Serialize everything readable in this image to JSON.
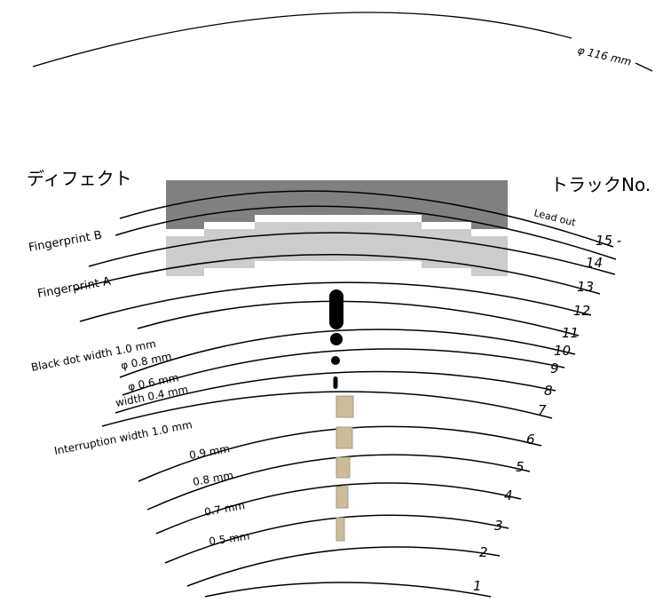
{
  "outer_diameter_label": "φ 116 mm",
  "defect_heading": "ディフェクト",
  "track_heading": "トラックNo.",
  "lead_out_label": "Lead out",
  "tracks": [
    "1",
    "2",
    "3",
    "4",
    "5",
    "6",
    "7",
    "8",
    "9",
    "10",
    "11",
    "12",
    "13",
    "14",
    "15"
  ],
  "track_15_suffix": "-",
  "defect_labels": {
    "fingerprint_b": "Fingerprint B",
    "fingerprint_a": "Fingerprint A",
    "black_dot_width": "Black dot width 1.0 mm",
    "phi_08": "φ  0.8 mm",
    "phi_06": "φ  0.6 mm",
    "width_04": "width 0.4 mm",
    "interruption_10": "Interruption width 1.0 mm",
    "mm_09": "0.9 mm",
    "mm_08": "0.8 mm",
    "mm_07": "0.7 mm",
    "mm_05": "0.5 mm"
  },
  "colors": {
    "fingerprint_b": "#808080",
    "fingerprint_a": "#cccccc",
    "interruption": "#cdbb99",
    "interruption_stroke": "#a89a80",
    "track_line": "#000000"
  }
}
